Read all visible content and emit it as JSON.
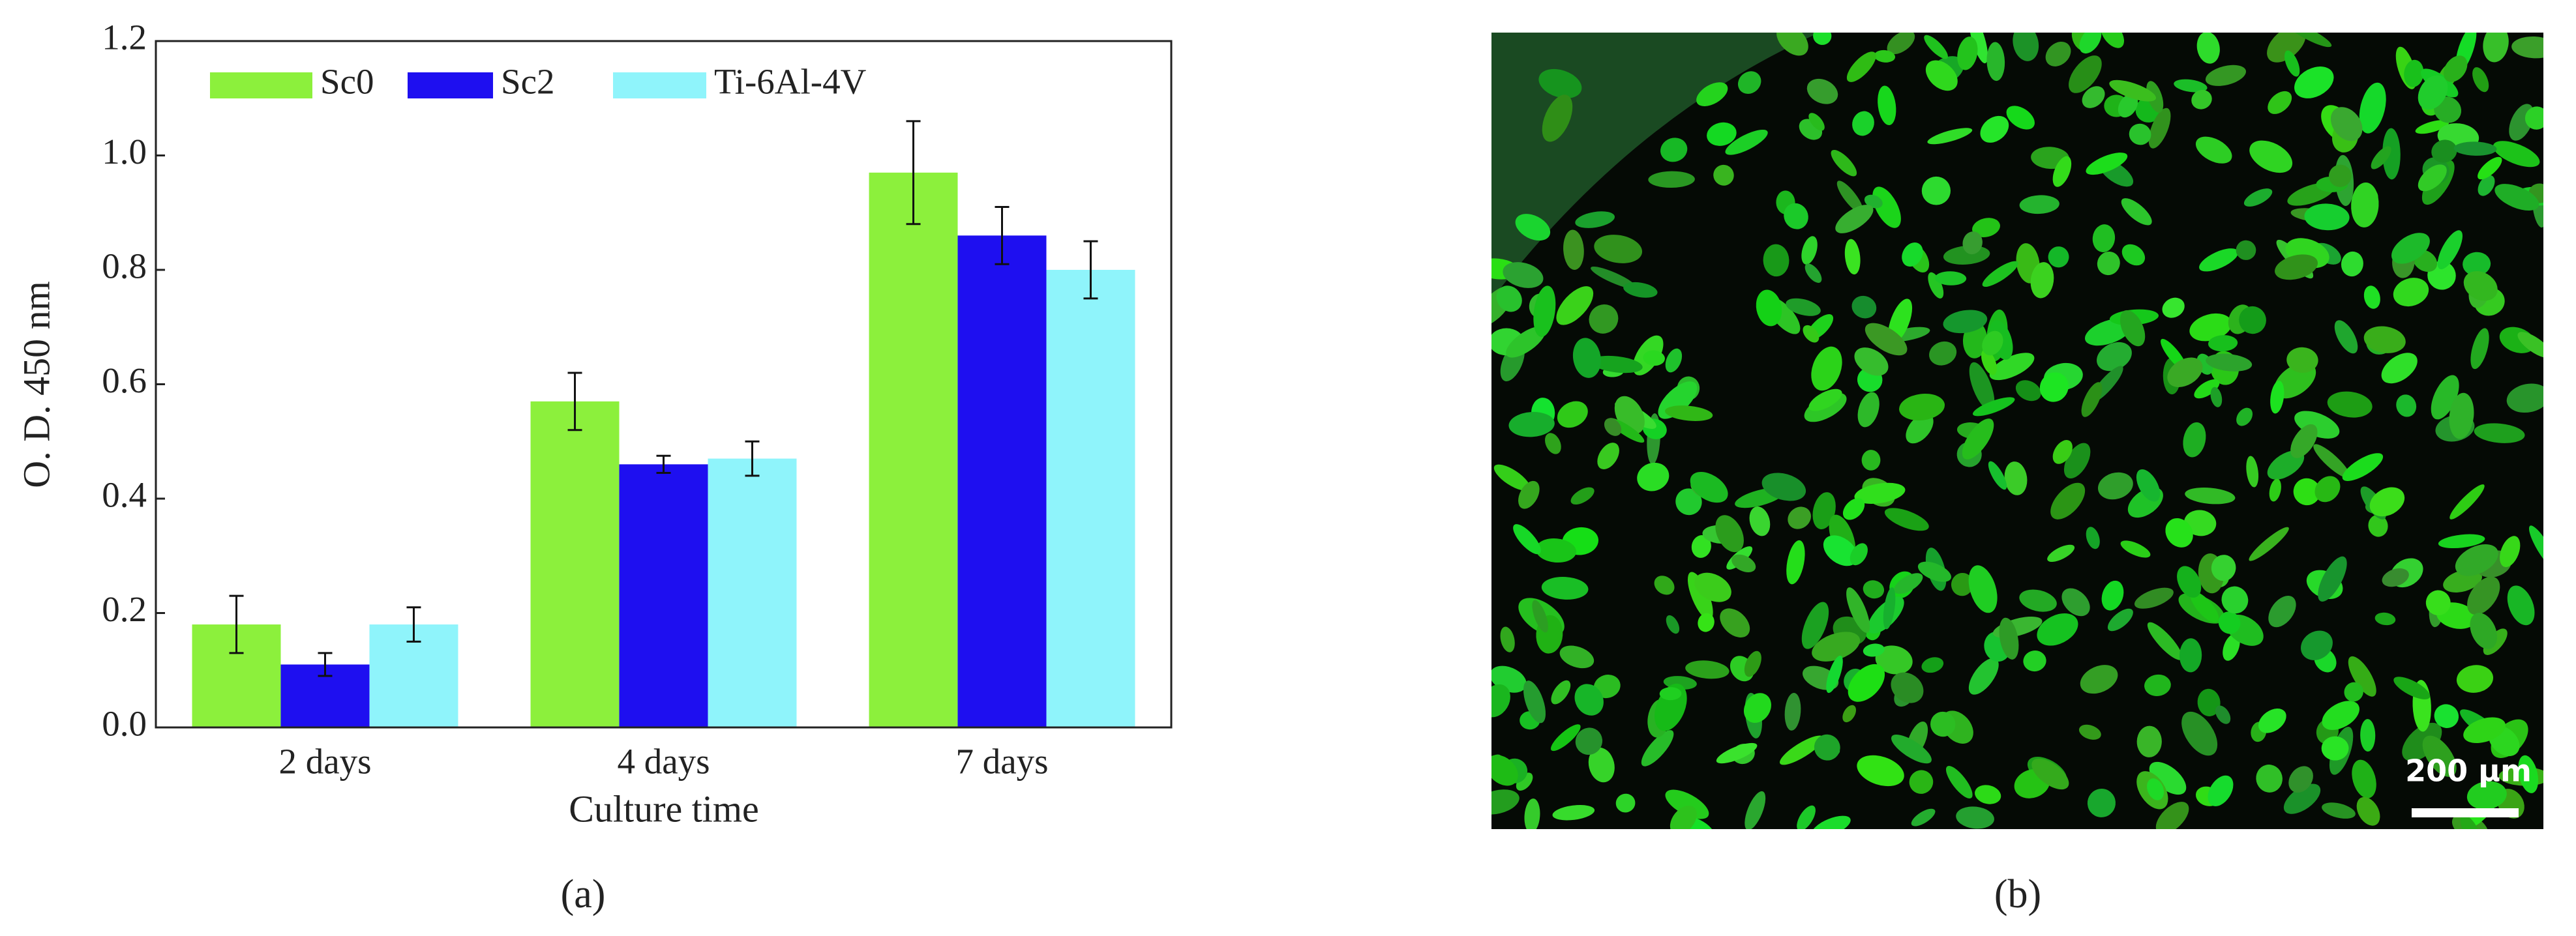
{
  "chart_data": {
    "type": "bar",
    "xlabel": "Culture time",
    "ylabel": "O. D. 450 nm",
    "categories": [
      "2 days",
      "4 days",
      "7 days"
    ],
    "series": [
      {
        "name": "Sc0",
        "color": "#8cf03c",
        "values": [
          0.18,
          0.57,
          0.97
        ],
        "errors": [
          0.05,
          0.05,
          0.09
        ]
      },
      {
        "name": "Sc2",
        "color": "#1e0ff0",
        "values": [
          0.11,
          0.46,
          0.86
        ],
        "errors": [
          0.02,
          0.015,
          0.05
        ]
      },
      {
        "name": "Ti-6Al-4V",
        "color": "#8ff4fb",
        "values": [
          0.18,
          0.47,
          0.8
        ],
        "errors": [
          0.03,
          0.03,
          0.05
        ]
      }
    ],
    "ylim": [
      0,
      1.2
    ],
    "yticks": [
      {
        "value": 0,
        "label": "0.0"
      },
      0.2,
      0.4,
      0.6,
      0.8,
      {
        "value": 1,
        "label": "1.0"
      },
      1.2
    ],
    "legend": "upper-left"
  },
  "panels": [
    "(a)",
    "(b)"
  ],
  "image": {
    "scale_bar": "200 µm"
  }
}
